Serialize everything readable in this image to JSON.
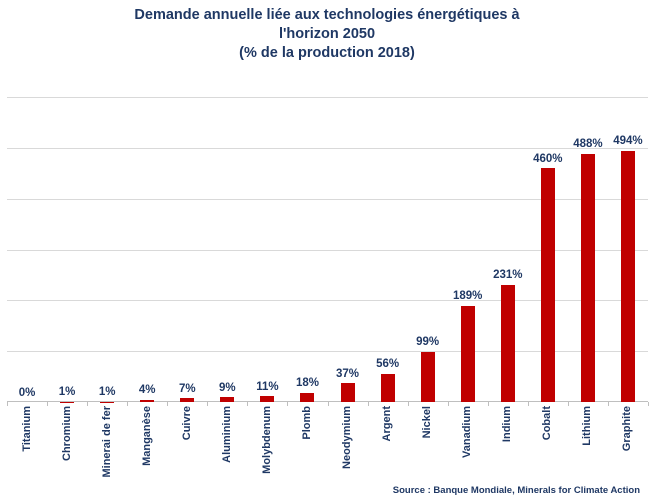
{
  "chart_data": {
    "type": "bar",
    "title": "Demande annuelle liée aux technologies énergétiques à\nl'horizon 2050\n(% de la production 2018)",
    "categories": [
      "Titanium",
      "Chromium",
      "Minerai de fer",
      "Manganèse",
      "Cuivre",
      "Aluminium",
      "Molybdenum",
      "Plomb",
      "Neodymium",
      "Argent",
      "Nickel",
      "Vanadium",
      "Indium",
      "Cobalt",
      "Lithium",
      "Graphite"
    ],
    "values": [
      0,
      1,
      1,
      4,
      7,
      9,
      11,
      18,
      37,
      56,
      99,
      189,
      231,
      460,
      488,
      494
    ],
    "data_labels": [
      "0%",
      "1%",
      "1%",
      "4%",
      "7%",
      "9%",
      "11%",
      "18%",
      "37%",
      "56%",
      "99%",
      "189%",
      "231%",
      "460%",
      "488%",
      "494%"
    ],
    "value_suffix": "%",
    "xlabel": "",
    "ylabel": "",
    "ylim": [
      0,
      600
    ],
    "gridline_step": 100,
    "grid": true,
    "y_tick_labels_visible": false,
    "legend": "none",
    "source": "Source : Banque Mondiale, Minerals for Climate Action",
    "colors": {
      "bar": "#C00000",
      "text": "#1F3864",
      "gridline": "#D9D9D9",
      "axis": "#BFBFBF",
      "background": "#FFFFFF"
    }
  }
}
